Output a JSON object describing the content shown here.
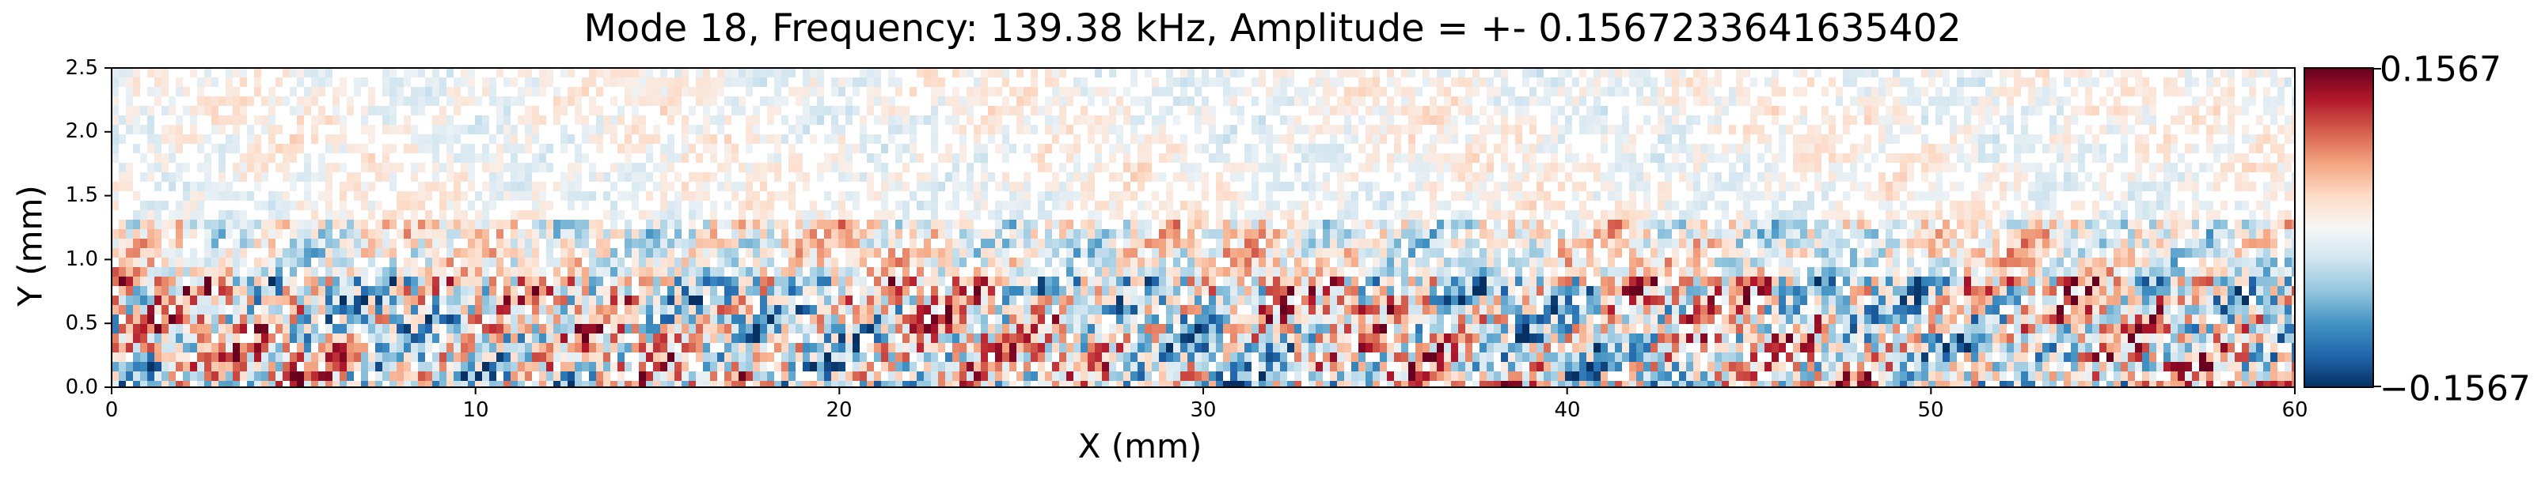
{
  "chart_data": {
    "type": "heatmap",
    "title": "Mode 18, Frequency: 139.38 kHz, Amplitude = +- 0.1567233641635402",
    "xlabel": "X (mm)",
    "ylabel": "Y (mm)",
    "xlim": [
      0,
      60
    ],
    "ylim": [
      0,
      2.5
    ],
    "x_ticks": [
      0,
      10,
      20,
      30,
      40,
      50,
      60
    ],
    "x_tick_labels": [
      "0",
      "10",
      "20",
      "30",
      "40",
      "50",
      "60"
    ],
    "y_ticks": [
      0.0,
      0.5,
      1.0,
      1.5,
      2.0,
      2.5
    ],
    "y_tick_labels": [
      "0.0",
      "0.5",
      "1.0",
      "1.5",
      "2.0",
      "2.5"
    ],
    "colormap": "RdBu_r",
    "vmin": -0.1567,
    "vmax": 0.1567,
    "colorbar_labels": [
      "0.1567",
      "−0.1567"
    ],
    "colorbar_colors": [
      "#67001f",
      "#b2182b",
      "#d6604d",
      "#f4a582",
      "#fddbc7",
      "#f7f7f7",
      "#d1e5f0",
      "#92c5de",
      "#4393c3",
      "#2166ac",
      "#053061"
    ]
  }
}
